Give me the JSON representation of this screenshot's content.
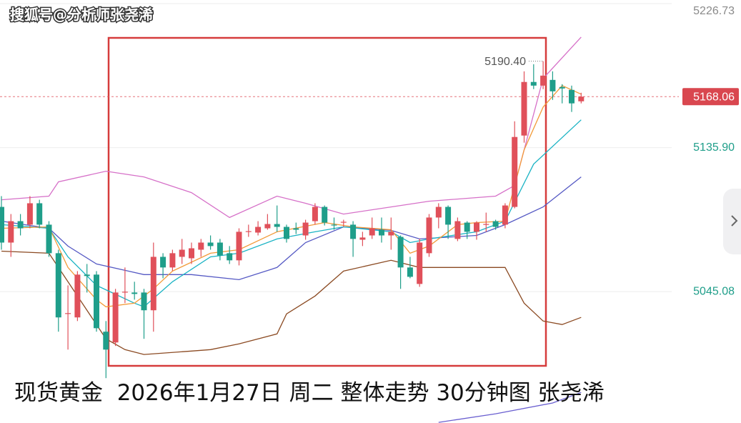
{
  "watermark": "搜狐号@分析师张尧浠",
  "caption": "现货黄金  2026年1月27日 周二 整体走势 30分钟图 张尧浠",
  "chart_data": {
    "type": "candlestick",
    "ylim": [
      4962.2,
      5229
    ],
    "yticks": [
      5226.73,
      {
        "value": 5135.9,
        "label": "5135.90"
      },
      5045.08
    ],
    "grid": true,
    "last_price": {
      "value": 5168.06,
      "label": "5168.06"
    },
    "high_annotation": {
      "value": 5190.4,
      "label": "5190.40"
    },
    "up_color": "#e0505a",
    "down_color": "#1f9e8a",
    "open": [
      5098.5,
      5076,
      5089.5,
      5087.3,
      5100.8,
      5087.3,
      5069.3,
      5031,
      5028.8,
      5055.8,
      5055.8,
      5019.8,
      5013,
      5044.5,
      5044.5,
      5044.5,
      5033.3,
      5067,
      5060.3,
      5067,
      5066.1,
      5071.5,
      5076,
      5076,
      5069.3,
      5064.8,
      5082.8,
      5082.3,
      5085,
      5087.7,
      5085.9,
      5085,
      5080.5,
      5089.5,
      5098.5,
      5087.3,
      5088.6,
      5087.3,
      5077.8,
      5080.5,
      5084.1,
      5080.5,
      5079.6,
      5060.3,
      5049.9,
      5069.3,
      5091.8,
      5098.5,
      5078.3,
      5088.6,
      5082.8,
      5087.3,
      5089.5,
      5087.3,
      5098.5,
      5143.5,
      5177.3,
      5175,
      5178.6,
      5174.1,
      5172.3,
      5165.1
    ],
    "high": [
      5105.3,
      5094,
      5094,
      5105.3,
      5103,
      5089.5,
      5071.5,
      5049,
      5058,
      5062.5,
      5058,
      5026.5,
      5046.8,
      5060.3,
      5051.3,
      5046.8,
      5076,
      5069.3,
      5071.5,
      5078.3,
      5076,
      5078.3,
      5080.5,
      5078.3,
      5073.8,
      5085,
      5087.3,
      5089.5,
      5094,
      5099.4,
      5087.3,
      5088.6,
      5090.4,
      5100.8,
      5099.4,
      5091.8,
      5090.4,
      5089.5,
      5082.8,
      5091.8,
      5091.8,
      5091.8,
      5080.5,
      5067,
      5078.3,
      5094,
      5100.8,
      5099.4,
      5091.8,
      5089.5,
      5089.5,
      5094.9,
      5090.4,
      5100.8,
      5152.5,
      5184,
      5188.5,
      5190.4,
      5184,
      5175.9,
      5175,
      5170.5
    ],
    "low": [
      5071.5,
      5067,
      5080.5,
      5085,
      5085,
      5067,
      5019.8,
      5008.5,
      5026.5,
      5044.5,
      5019.8,
      4990.5,
      5010.8,
      5037.8,
      5040,
      5015.3,
      5019.8,
      5053.5,
      5058,
      5062.5,
      5062.5,
      5067,
      5071.5,
      5064.8,
      5062.5,
      5061.6,
      5079.6,
      5080.5,
      5084.1,
      5082.8,
      5076,
      5081.4,
      5077.8,
      5087.3,
      5086.8,
      5084.1,
      5085.9,
      5067,
      5073.8,
      5078.3,
      5076,
      5071.5,
      5046.8,
      5053.5,
      5048.1,
      5067,
      5085,
      5078.3,
      5076.9,
      5078.3,
      5077.8,
      5082.8,
      5084.1,
      5085,
      5097.6,
      5139,
      5172.8,
      5172.8,
      5166,
      5163.8,
      5158.4,
      5163.8
    ],
    "close": [
      5076,
      5089.5,
      5085,
      5100.8,
      5087.3,
      5069.3,
      5028.8,
      5031.5,
      5055.8,
      5054.9,
      5022,
      5008.5,
      5044.5,
      5045,
      5043.6,
      5033.3,
      5067,
      5060.3,
      5069.3,
      5071.5,
      5072.4,
      5076,
      5073.8,
      5067.9,
      5064.8,
      5082.8,
      5083.2,
      5085.9,
      5087.7,
      5085.9,
      5078.3,
      5084.1,
      5088.6,
      5098.5,
      5088.6,
      5086.8,
      5089.1,
      5078.3,
      5079.2,
      5085,
      5080.5,
      5082.8,
      5060.3,
      5054.4,
      5076,
      5091.8,
      5098.5,
      5087.3,
      5089.5,
      5082.8,
      5088.6,
      5087.7,
      5085.9,
      5099.4,
      5142.6,
      5177.3,
      5175,
      5181.3,
      5171.4,
      5173.2,
      5163.8,
      5168.06
    ],
    "overlays": [
      {
        "color": "#d670c8",
        "x": [
          0,
          5,
          6,
          11,
          15,
          20,
          24,
          29,
          32,
          36,
          41,
          45,
          52,
          54,
          57,
          61
        ],
        "values": [
          5103,
          5105.3,
          5114.3,
          5121,
          5117.4,
          5107.5,
          5091.8,
          5105.3,
          5100.8,
          5094,
          5098.5,
          5102.1,
          5105.3,
          5112,
          5179.5,
          5205.6
        ]
      },
      {
        "color": "#8b4a22",
        "x": [
          0,
          5,
          6,
          11,
          13,
          15,
          20,
          22,
          25,
          29,
          30,
          33,
          36,
          41,
          44,
          53,
          55,
          57,
          59,
          61
        ],
        "values": [
          5070.6,
          5069.3,
          5060.3,
          5015.3,
          5008.5,
          5005.4,
          5007.6,
          5008.5,
          5012.1,
          5018.4,
          5031,
          5042.3,
          5058,
          5064.8,
          5060.3,
          5060.3,
          5037.8,
          5026.5,
          5024.3,
          5028.8
        ]
      },
      {
        "color": "#5559c4",
        "x": [
          0,
          5,
          7,
          10,
          15,
          20,
          25,
          29,
          32,
          36,
          41,
          44,
          50,
          53,
          57,
          61
        ],
        "values": [
          5089.5,
          5085,
          5073.8,
          5062.5,
          5055.8,
          5055.8,
          5052.6,
          5060.3,
          5076,
          5085.9,
          5083.7,
          5078.3,
          5080.5,
          5087.3,
          5098.5,
          5117.4
        ]
      },
      {
        "color": "#1ab3c4",
        "x": [
          0,
          5,
          7,
          10,
          14,
          15,
          18,
          22,
          25,
          29,
          33,
          36,
          41,
          43,
          45,
          50,
          53,
          56,
          61
        ],
        "values": [
          5087.3,
          5085,
          5067,
          5049,
          5037.8,
          5035.5,
          5051.3,
          5067,
          5069.3,
          5078.3,
          5082.8,
          5085.9,
          5082.8,
          5076,
          5078.3,
          5082.8,
          5089.5,
          5125.5,
          5153.4
        ]
      },
      {
        "color": "#f29a38",
        "x": [
          0,
          5,
          7,
          10,
          11,
          14,
          16,
          18,
          22,
          25,
          29,
          34,
          37,
          41,
          43,
          45,
          48,
          50,
          53,
          55,
          57,
          59,
          61
        ],
        "values": [
          5085,
          5085.9,
          5060.3,
          5040,
          5035.5,
          5037.8,
          5046.8,
          5058,
          5069.3,
          5071.5,
          5082.8,
          5088.6,
          5085.9,
          5084.1,
          5069.3,
          5073.8,
          5087.3,
          5088.6,
          5089.5,
          5134.5,
          5161.5,
          5175,
          5169.6
        ]
      },
      {
        "color": "#6a5fd0",
        "x": [
          46,
          52,
          58,
          61
        ],
        "values": [
          4962.6,
          4968,
          4974.8,
          4981.5
        ]
      }
    ]
  }
}
